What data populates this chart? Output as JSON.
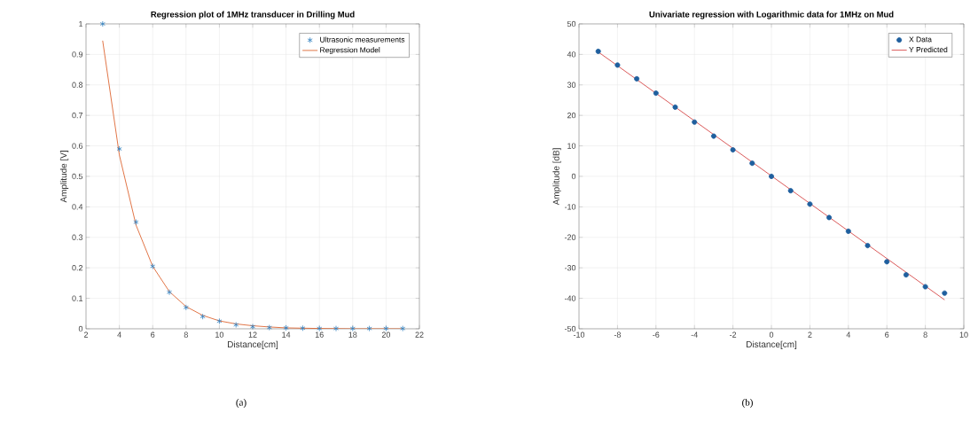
{
  "chart_data": [
    {
      "type": "scatter",
      "title": "Regression plot of 1MHz transducer in Drilling Mud",
      "xlabel": "Distance[cm]",
      "ylabel": "Amplitude [V]",
      "xlim": [
        2,
        22
      ],
      "xticks": [
        2,
        4,
        6,
        8,
        10,
        12,
        14,
        16,
        18,
        20,
        22
      ],
      "ylim": [
        0,
        1
      ],
      "yticks": [
        0,
        0.1,
        0.2,
        0.3,
        0.4,
        0.5,
        0.6,
        0.7,
        0.8,
        0.9,
        1
      ],
      "grid": true,
      "legend": "top right",
      "annotations": [
        "(a)"
      ],
      "series": [
        {
          "name": "Ultrasonic measurements",
          "marker": "cross",
          "color": "#2f7fbf",
          "x": [
            3,
            4,
            5,
            6,
            7,
            8,
            9,
            10,
            11,
            12,
            13,
            14,
            15,
            16,
            17,
            18,
            19,
            20,
            21
          ],
          "values": [
            1.0,
            0.59,
            0.35,
            0.205,
            0.12,
            0.07,
            0.04,
            0.025,
            0.013,
            0.007,
            0.004,
            0.003,
            0.002,
            0.001,
            0.001,
            0.001,
            0.001,
            0.001,
            0.001
          ]
        },
        {
          "name": "Regression Model",
          "type": "line",
          "marker": "none",
          "color": "#d95319",
          "x": [
            3,
            4,
            5,
            6,
            7,
            8,
            9,
            10,
            11,
            12,
            13,
            14,
            16,
            18,
            21
          ],
          "values": [
            0.945,
            0.57,
            0.34,
            0.205,
            0.122,
            0.073,
            0.044,
            0.026,
            0.016,
            0.01,
            0.006,
            0.003,
            0.001,
            0.0,
            0.0
          ]
        }
      ]
    },
    {
      "type": "scatter",
      "title": "Univariate regression with Logarithmic data for 1MHz on Mud",
      "xlabel": "Distance[cm]",
      "ylabel": "Amplitude [dB]",
      "xlim": [
        -10,
        10
      ],
      "xticks": [
        -10,
        -8,
        -6,
        -4,
        -2,
        0,
        2,
        4,
        6,
        8,
        10
      ],
      "ylim": [
        -50,
        50
      ],
      "yticks": [
        -50,
        -40,
        -30,
        -20,
        -10,
        0,
        10,
        20,
        30,
        40,
        50
      ],
      "grid": true,
      "legend": "top right",
      "annotations": [
        "(b)"
      ],
      "series": [
        {
          "name": "X Data",
          "marker": "circle",
          "color": "#1f5f9e",
          "x": [
            -9,
            -8,
            -7,
            -6,
            -5,
            -4,
            -3,
            -2,
            -1,
            0,
            1,
            2,
            3,
            4,
            5,
            6,
            7,
            8,
            9
          ],
          "values": [
            41,
            36.5,
            32,
            27.3,
            22.7,
            17.8,
            13.2,
            8.7,
            4.3,
            0,
            -4.7,
            -9.1,
            -13.5,
            -18,
            -22.7,
            -28,
            -32.3,
            -36.2,
            -38.3
          ]
        },
        {
          "name": "Y Predicted",
          "type": "line",
          "marker": "none",
          "color": "#d03030",
          "x": [
            -9,
            9
          ],
          "values": [
            40.8,
            -40.5
          ]
        }
      ]
    }
  ]
}
